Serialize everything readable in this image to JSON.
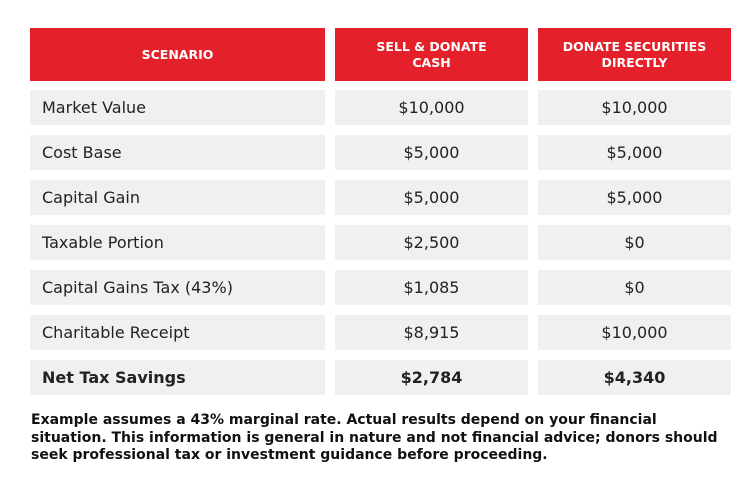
{
  "table": {
    "headers": [
      "SCENARIO",
      "SELL & DONATE CASH",
      "DONATE SECURITIES DIRECTLY"
    ],
    "rows": [
      [
        "Market Value",
        "$10,000",
        "$10,000"
      ],
      [
        "Cost Base",
        "$5,000",
        "$5,000"
      ],
      [
        "Capital Gain",
        "$5,000",
        "$5,000"
      ],
      [
        "Taxable Portion",
        "$2,500",
        "$0"
      ],
      [
        "Capital Gains Tax (43%)",
        "$1,085",
        "$0"
      ],
      [
        "Charitable Receipt",
        "$8,915",
        "$10,000"
      ],
      [
        "Net Tax Savings",
        "$2,784",
        "$4,340"
      ]
    ]
  },
  "footnote": "Example assumes a 43% marginal rate. Actual results depend on your financial situation. This information is general in nature and not financial advice; donors should seek professional tax or investment guidance before proceeding."
}
